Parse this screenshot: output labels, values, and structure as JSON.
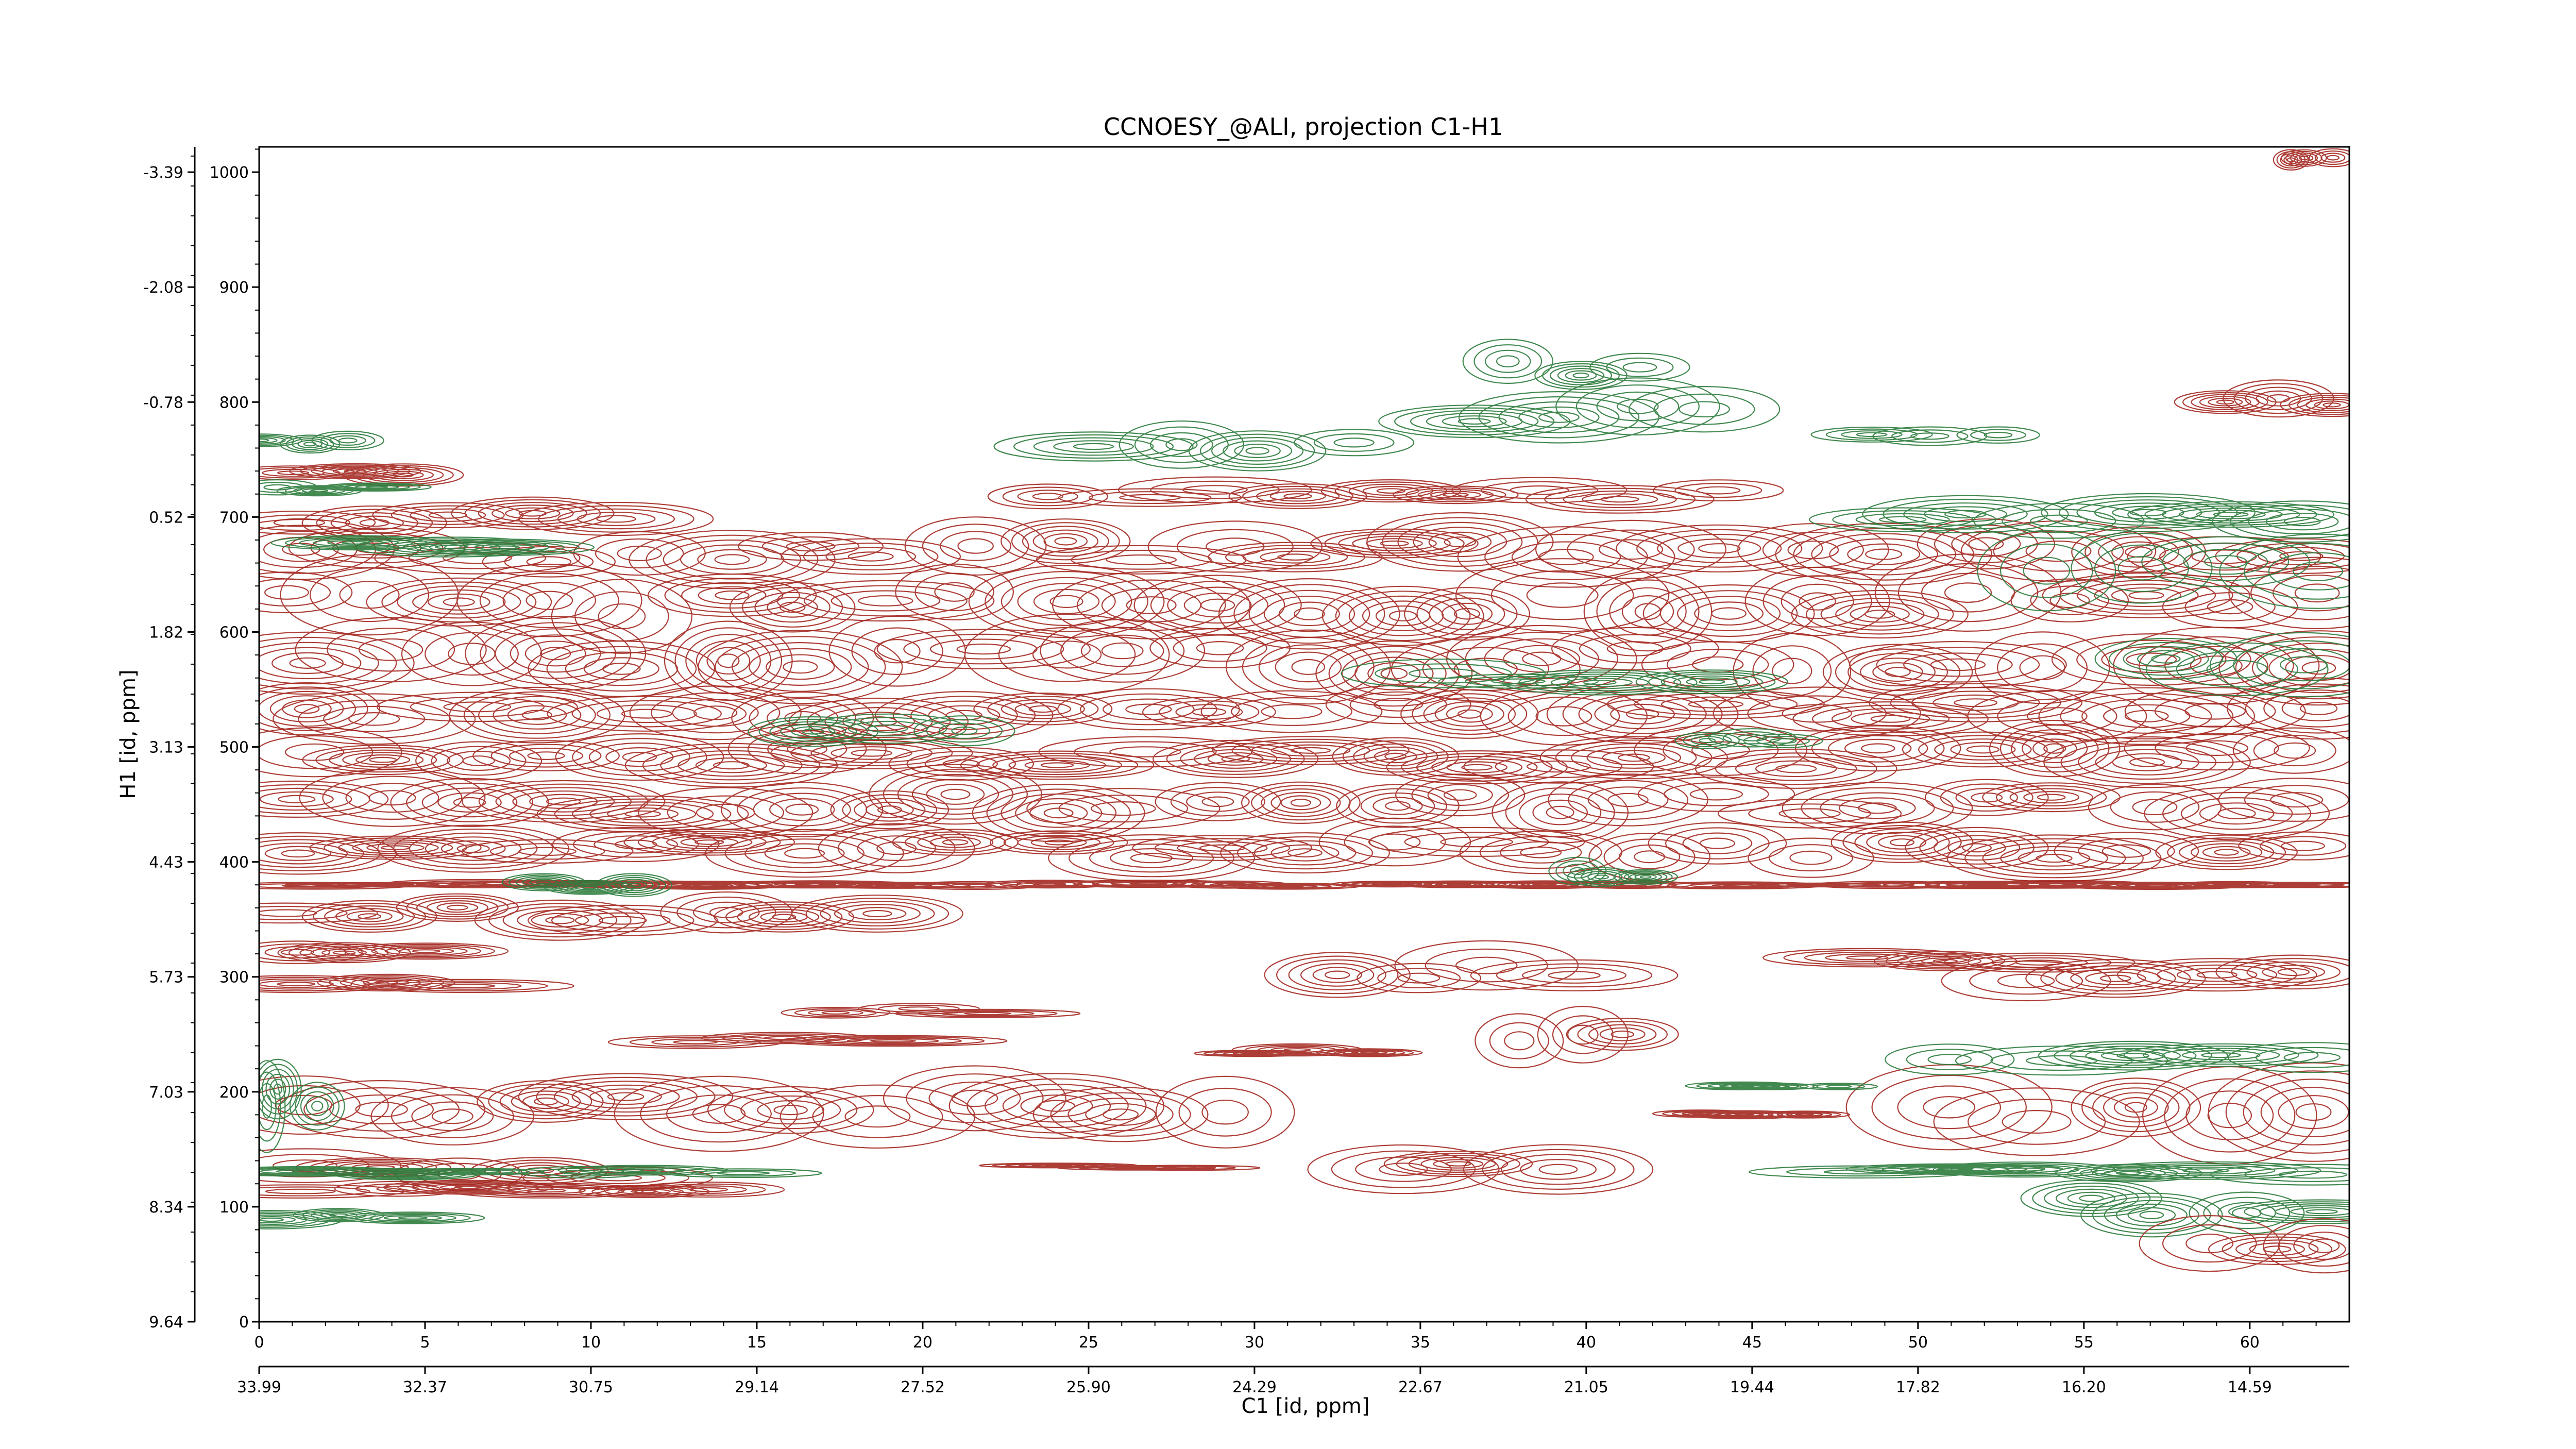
{
  "chart_data": {
    "type": "contour",
    "title": "CCNOESY_@ALI, projection C1-H1",
    "xlabel": "C1 [id, ppm]",
    "ylabel": "H1 [id, ppm]",
    "xlim": [
      0,
      63
    ],
    "ylim": [
      0,
      1022
    ],
    "x_index_ticks": [
      "0",
      "5",
      "10",
      "15",
      "20",
      "25",
      "30",
      "35",
      "40",
      "45",
      "50",
      "55",
      "60"
    ],
    "x_ppm_ticks": [
      "33.99",
      "32.37",
      "30.75",
      "29.14",
      "27.52",
      "25.90",
      "24.29",
      "22.67",
      "21.05",
      "19.44",
      "17.82",
      "16.20",
      "14.59"
    ],
    "y_index_ticks": [
      "0",
      "100",
      "200",
      "300",
      "400",
      "500",
      "600",
      "700",
      "800",
      "900",
      "1000"
    ],
    "y_ppm_ticks": [
      "9.64",
      "8.34",
      "7.03",
      "5.73",
      "4.43",
      "3.13",
      "1.82",
      "0.52",
      "-0.78",
      "-2.08",
      "-3.39"
    ],
    "positive_color": "#a52a22",
    "negative_color": "#2e7d3e",
    "grid": false,
    "legend": "none",
    "peak_bands": [
      {
        "sign": "neg",
        "x0": 0,
        "x1": 3,
        "y": 765,
        "h": 10
      },
      {
        "sign": "pos",
        "x0": 0,
        "x1": 5,
        "y": 740,
        "h": 14
      },
      {
        "sign": "neg",
        "x0": 0,
        "x1": 4,
        "y": 725,
        "h": 8
      },
      {
        "sign": "pos",
        "x0": 0,
        "x1": 12,
        "y": 700,
        "h": 20
      },
      {
        "sign": "pos",
        "x0": 0,
        "x1": 63,
        "y": 670,
        "h": 30
      },
      {
        "sign": "neg",
        "x0": 2,
        "x1": 9,
        "y": 675,
        "h": 10
      },
      {
        "sign": "pos",
        "x0": 0,
        "x1": 63,
        "y": 625,
        "h": 40
      },
      {
        "sign": "pos",
        "x0": 0,
        "x1": 63,
        "y": 575,
        "h": 40
      },
      {
        "sign": "pos",
        "x0": 0,
        "x1": 63,
        "y": 530,
        "h": 30
      },
      {
        "sign": "pos",
        "x0": 0,
        "x1": 63,
        "y": 490,
        "h": 30
      },
      {
        "sign": "pos",
        "x0": 0,
        "x1": 63,
        "y": 450,
        "h": 30
      },
      {
        "sign": "pos",
        "x0": 0,
        "x1": 63,
        "y": 410,
        "h": 25
      },
      {
        "sign": "pos",
        "x0": 0,
        "x1": 63,
        "y": 380,
        "h": 4
      },
      {
        "sign": "pos",
        "x0": 0,
        "x1": 20,
        "y": 355,
        "h": 20
      },
      {
        "sign": "pos",
        "x0": 0,
        "x1": 6,
        "y": 320,
        "h": 15
      },
      {
        "sign": "pos",
        "x0": 0,
        "x1": 8,
        "y": 295,
        "h": 12
      },
      {
        "sign": "pos",
        "x0": 0,
        "x1": 30,
        "y": 190,
        "h": 40
      },
      {
        "sign": "pos",
        "x0": 0,
        "x1": 12,
        "y": 130,
        "h": 20
      },
      {
        "sign": "pos",
        "x0": 0,
        "x1": 15,
        "y": 115,
        "h": 8
      },
      {
        "sign": "neg",
        "x0": 0,
        "x1": 16,
        "y": 130,
        "h": 6
      },
      {
        "sign": "neg",
        "x0": 0,
        "x1": 5,
        "y": 90,
        "h": 10
      },
      {
        "sign": "neg",
        "x0": 0,
        "x1": 2,
        "y": 195,
        "h": 50
      },
      {
        "sign": "pos",
        "x0": 16,
        "x1": 23,
        "y": 270,
        "h": 8
      },
      {
        "sign": "pos",
        "x0": 12,
        "x1": 20,
        "y": 245,
        "h": 10
      },
      {
        "sign": "pos",
        "x0": 29,
        "x1": 34,
        "y": 235,
        "h": 6
      },
      {
        "sign": "pos",
        "x0": 33,
        "x1": 40,
        "y": 130,
        "h": 25
      },
      {
        "sign": "pos",
        "x0": 23,
        "x1": 29,
        "y": 135,
        "h": 4
      },
      {
        "sign": "pos",
        "x0": 23,
        "x1": 45,
        "y": 720,
        "h": 18
      },
      {
        "sign": "neg",
        "x0": 24,
        "x1": 34,
        "y": 760,
        "h": 25
      },
      {
        "sign": "neg",
        "x0": 35,
        "x1": 45,
        "y": 790,
        "h": 30
      },
      {
        "sign": "neg",
        "x0": 37,
        "x1": 42,
        "y": 830,
        "h": 25
      },
      {
        "sign": "neg",
        "x0": 48,
        "x1": 53,
        "y": 770,
        "h": 10
      },
      {
        "sign": "neg",
        "x0": 48,
        "x1": 63,
        "y": 700,
        "h": 20
      },
      {
        "sign": "neg",
        "x0": 53,
        "x1": 63,
        "y": 650,
        "h": 40
      },
      {
        "sign": "neg",
        "x0": 56,
        "x1": 63,
        "y": 570,
        "h": 40
      },
      {
        "sign": "pos",
        "x0": 58,
        "x1": 63,
        "y": 800,
        "h": 20
      },
      {
        "sign": "pos",
        "x0": 52,
        "x1": 63,
        "y": 300,
        "h": 20
      },
      {
        "sign": "pos",
        "x0": 47,
        "x1": 55,
        "y": 315,
        "h": 10
      },
      {
        "sign": "pos",
        "x0": 50,
        "x1": 63,
        "y": 185,
        "h": 50
      },
      {
        "sign": "neg",
        "x0": 50,
        "x1": 63,
        "y": 230,
        "h": 15
      },
      {
        "sign": "neg",
        "x0": 47,
        "x1": 63,
        "y": 130,
        "h": 10
      },
      {
        "sign": "neg",
        "x0": 54,
        "x1": 63,
        "y": 100,
        "h": 25
      },
      {
        "sign": "pos",
        "x0": 58,
        "x1": 63,
        "y": 60,
        "h": 30
      },
      {
        "sign": "pos",
        "x0": 61,
        "x1": 63,
        "y": 1010,
        "h": 10
      },
      {
        "sign": "neg",
        "x0": 16,
        "x1": 22,
        "y": 515,
        "h": 15
      },
      {
        "sign": "neg",
        "x0": 34,
        "x1": 45,
        "y": 560,
        "h": 15
      },
      {
        "sign": "neg",
        "x0": 43,
        "x1": 47,
        "y": 505,
        "h": 10
      },
      {
        "sign": "neg",
        "x0": 39,
        "x1": 42,
        "y": 390,
        "h": 15
      },
      {
        "sign": "neg",
        "x0": 8,
        "x1": 12,
        "y": 380,
        "h": 12
      },
      {
        "sign": "neg",
        "x0": 44,
        "x1": 48,
        "y": 205,
        "h": 4
      },
      {
        "sign": "pos",
        "x0": 43,
        "x1": 47,
        "y": 180,
        "h": 4
      },
      {
        "sign": "pos",
        "x0": 31,
        "x1": 41,
        "y": 305,
        "h": 25
      },
      {
        "sign": "pos",
        "x0": 37,
        "x1": 42,
        "y": 250,
        "h": 30
      }
    ]
  }
}
